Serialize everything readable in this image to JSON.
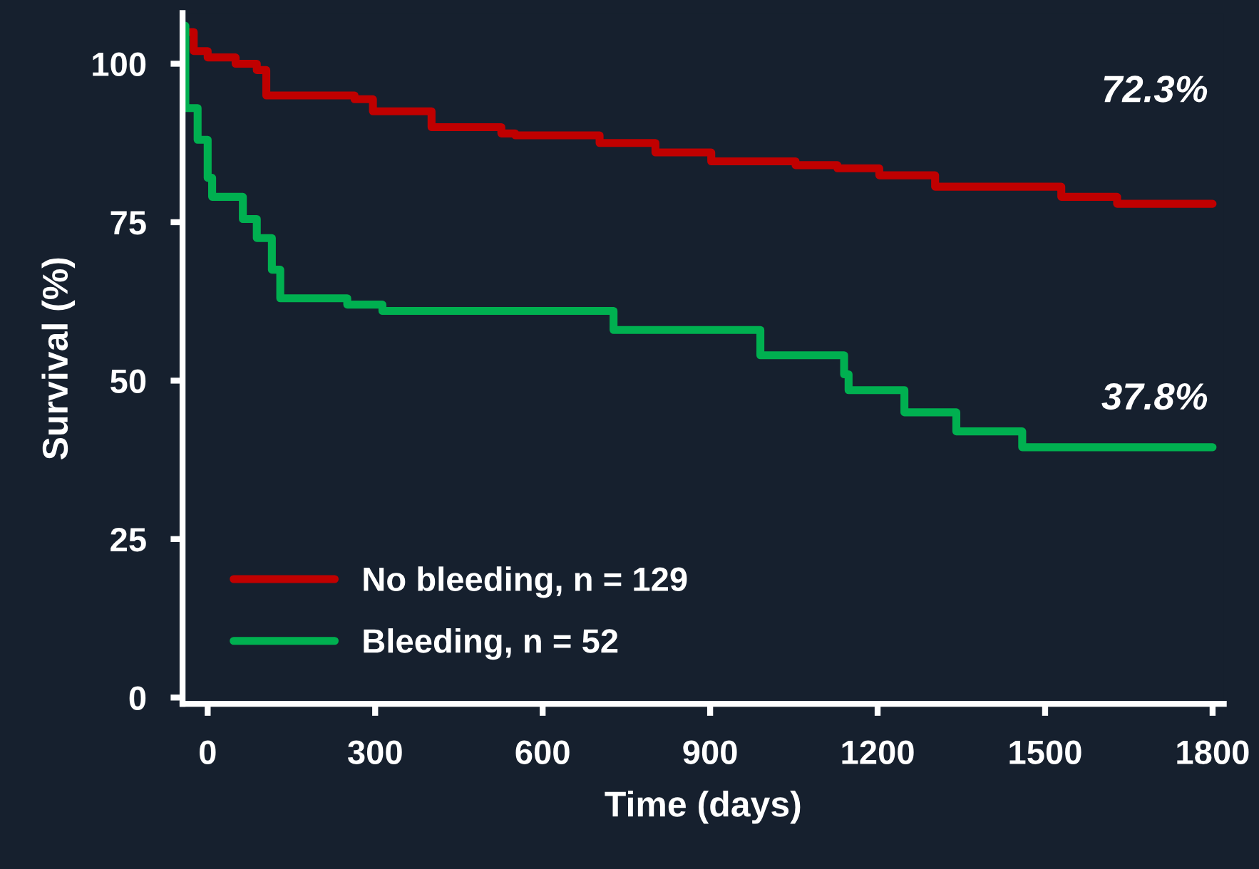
{
  "chart_data": {
    "type": "step",
    "xlabel": "Time (days)",
    "ylabel": "Survival (%)",
    "xlim": [
      -45,
      1820
    ],
    "ylim": [
      -1,
      108
    ],
    "xticks": [
      0,
      300,
      600,
      900,
      1200,
      1500,
      1800
    ],
    "yticks": [
      0,
      25,
      50,
      75,
      100
    ],
    "grid": false,
    "legend": "bottom left",
    "line_style": "solid",
    "marker": "none",
    "series": [
      {
        "name": "No bleeding, n = 129",
        "color": "#c00000",
        "x": [
          -45,
          -25,
          0,
          50,
          88,
          105,
          263,
          296,
          401,
          526,
          551,
          702,
          802,
          902,
          1053,
          1128,
          1203,
          1303,
          1529,
          1629,
          1800
        ],
        "values": [
          105,
          102,
          101,
          100,
          99,
          95,
          94.4,
          92.5,
          90,
          89,
          88.7,
          87.5,
          86,
          84.6,
          84,
          83.5,
          82.4,
          80.6,
          79,
          77.9,
          77.9
        ]
      },
      {
        "name": "Bleeding, n = 52",
        "color": "#00b050",
        "x": [
          -45,
          -40,
          -18,
          0,
          8,
          63,
          88,
          115,
          130,
          250,
          313,
          727,
          990,
          1140,
          1148,
          1248,
          1341,
          1459,
          1800
        ],
        "values": [
          106,
          93,
          88,
          82,
          79,
          75.5,
          72.5,
          67.5,
          63,
          62,
          61,
          58,
          54,
          51,
          48.5,
          45,
          42,
          39.5,
          39.5
        ]
      }
    ],
    "annotations": [
      "72.3%",
      "37.8%"
    ]
  }
}
